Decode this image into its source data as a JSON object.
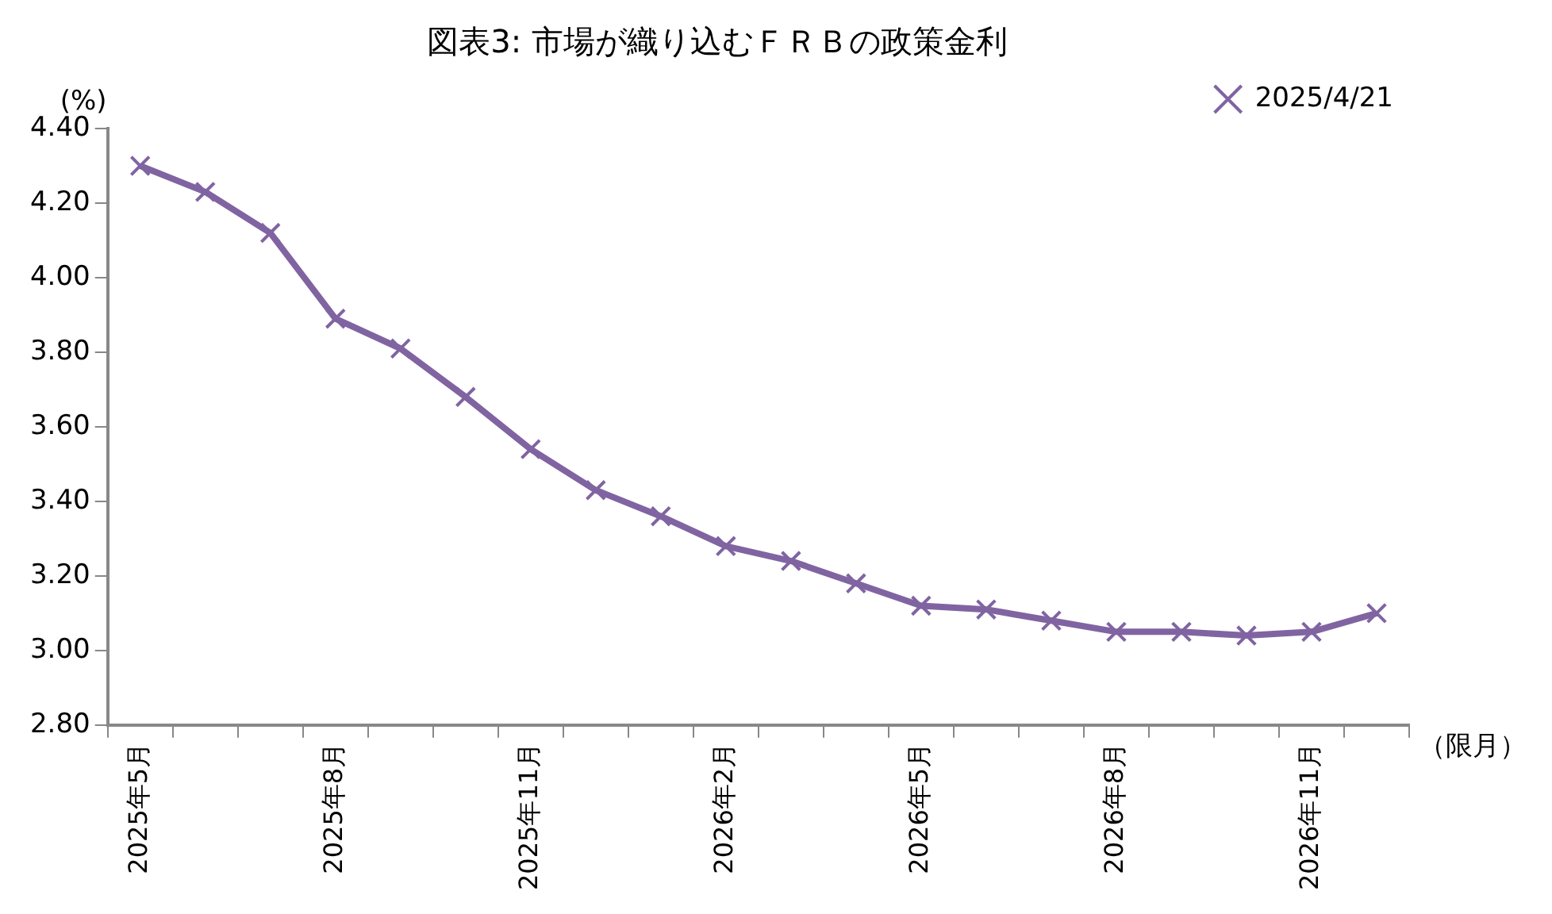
{
  "chart_data": {
    "type": "line",
    "title": "図表3: 市場が織り込むＦＲＢの政策金利",
    "xlabel": "（限月）",
    "ylabel": "(%)",
    "categories": [
      "2025年5月",
      null,
      null,
      "2025年8月",
      null,
      null,
      "2025年11月",
      null,
      null,
      "2026年2月",
      null,
      null,
      "2026年5月",
      null,
      null,
      "2026年8月",
      null,
      null,
      "2026年11月",
      null
    ],
    "series": [
      {
        "name": "2025/4/21",
        "color": "#8064a2",
        "values": [
          4.3,
          4.23,
          4.12,
          3.89,
          3.81,
          3.68,
          3.54,
          3.43,
          3.36,
          3.28,
          3.24,
          3.18,
          3.12,
          3.11,
          3.08,
          3.05,
          3.05,
          3.04,
          3.05,
          3.1
        ]
      }
    ],
    "ylim": [
      2.8,
      4.4
    ],
    "yticks": [
      {
        "value": 2.8,
        "label": "2.80"
      },
      {
        "value": 3.0,
        "label": "3.00"
      },
      {
        "value": 3.2,
        "label": "3.20"
      },
      {
        "value": 3.4,
        "label": "3.40"
      },
      {
        "value": 3.6,
        "label": "3.60"
      },
      {
        "value": 3.8,
        "label": "3.80"
      },
      {
        "value": 4.0,
        "label": "4.00"
      },
      {
        "value": 4.2,
        "label": "4.20"
      },
      {
        "value": 4.4,
        "label": "4.40"
      }
    ],
    "grid": false,
    "legend": "top right",
    "marker": "cross",
    "line_style": "solid"
  }
}
